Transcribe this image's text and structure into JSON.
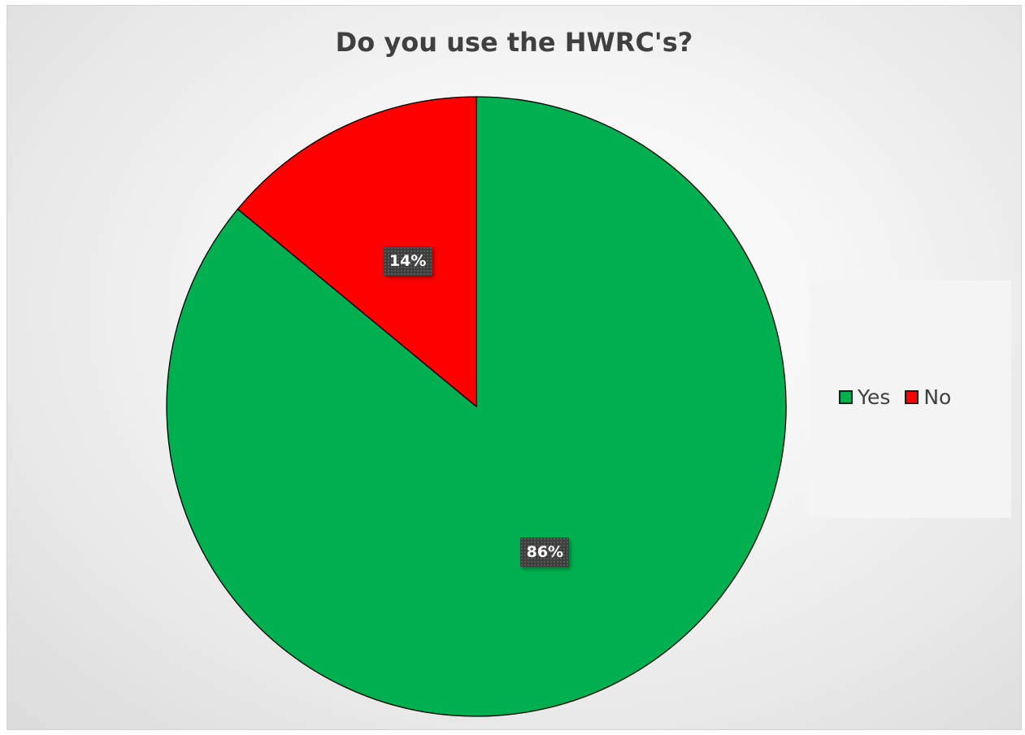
{
  "chart_data": {
    "type": "pie",
    "title": "Do you use the HWRC's?",
    "categories": [
      "Yes",
      "No"
    ],
    "values": [
      86,
      14
    ],
    "data_labels": [
      "86%",
      "14%"
    ],
    "colors": [
      "#00b050",
      "#ff0000"
    ],
    "legend_position": "right",
    "start_angle": "12 o'clock, clockwise"
  }
}
